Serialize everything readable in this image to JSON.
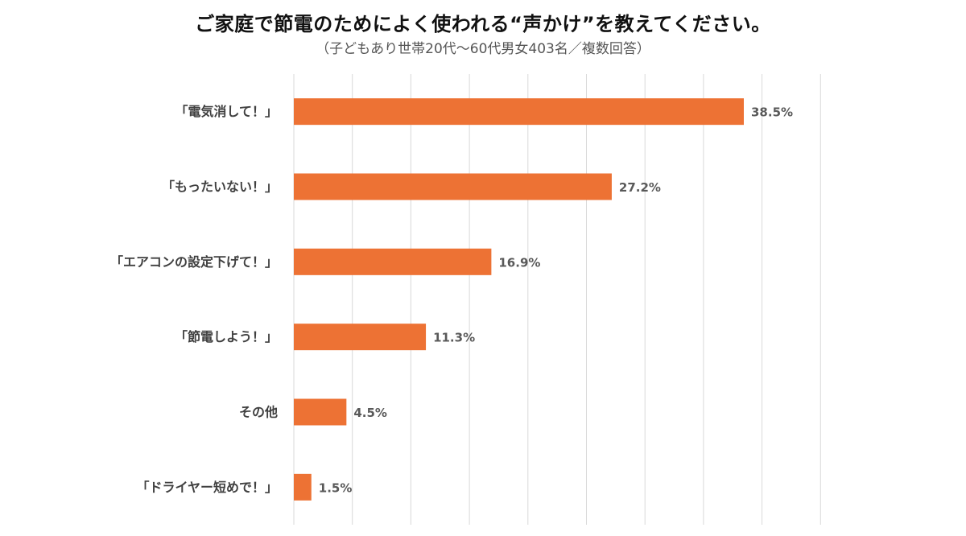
{
  "header": {
    "title": "ご家庭で節電のためによく使われる“声かけ”を教えてください。",
    "subtitle": "（子どもあり世帯20代～60代男女403名／複数回答）"
  },
  "colors": {
    "bar": "#ED7234",
    "grid": "#D9D9D9",
    "label": "#404040",
    "value": "#595959"
  },
  "chart_data": {
    "type": "bar",
    "orientation": "horizontal",
    "title": "ご家庭で節電のためによく使われる“声かけ”を教えてください。",
    "subtitle": "（子どもあり世帯20代～60代男女403名／複数回答）",
    "categories": [
      "「電気消して！」",
      "「もったいない！」",
      "「エアコンの設定下げて！」",
      "「節電しよう！」",
      "その他",
      "「ドライヤー短めで！」"
    ],
    "values": [
      38.5,
      27.2,
      16.9,
      11.3,
      4.5,
      1.5
    ],
    "value_labels": [
      "38.5%",
      "27.2%",
      "16.9%",
      "11.3%",
      "4.5%",
      "1.5%"
    ],
    "unit": "%",
    "xlim": [
      0,
      45
    ],
    "grid": true,
    "legend": "none"
  }
}
